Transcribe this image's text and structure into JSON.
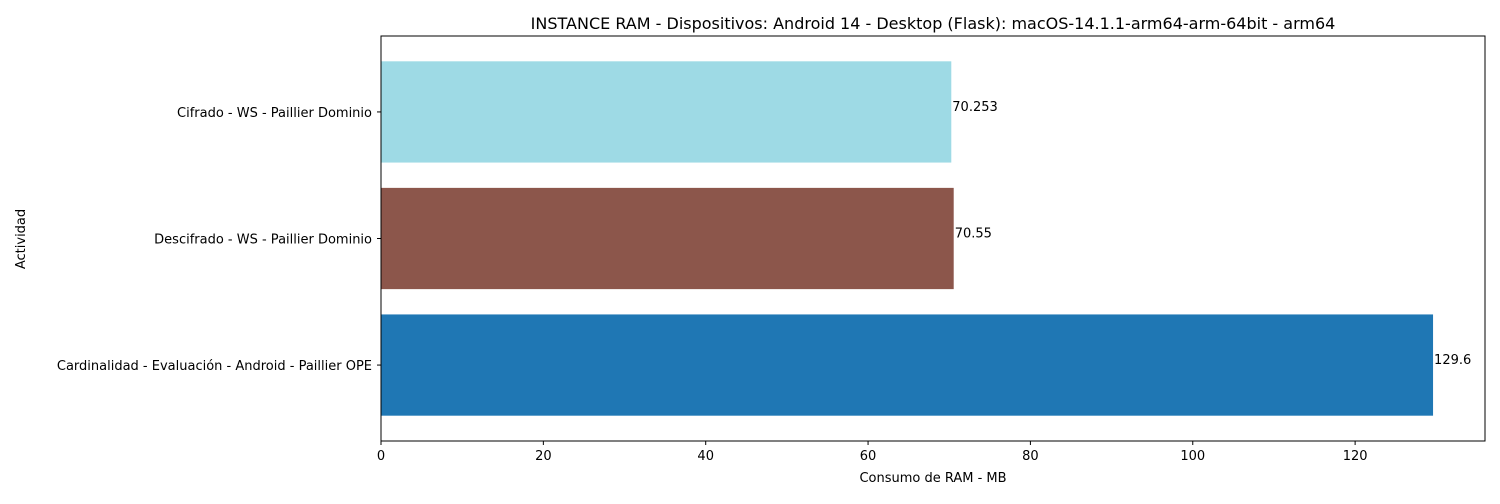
{
  "chart_data": {
    "type": "bar",
    "orientation": "horizontal",
    "title": "INSTANCE RAM - Dispositivos: Android 14 - Desktop (Flask): macOS-14.1.1-arm64-arm-64bit - arm64",
    "xlabel": "Consumo de RAM - MB",
    "ylabel": "Actividad",
    "xlim": [
      0,
      136
    ],
    "x_ticks": [
      0,
      20,
      40,
      60,
      80,
      100,
      120
    ],
    "grid": false,
    "legend": "none",
    "categories": [
      "Cardinalidad - Evaluación - Android - Paillier OPE",
      "Descifrado - WS - Paillier Dominio",
      "Cifrado - WS - Paillier Dominio"
    ],
    "values": [
      129.6,
      70.55,
      70.253
    ],
    "value_labels": [
      "129.6",
      "70.55",
      "70.253"
    ],
    "colors": [
      "#1f77b4",
      "#8c564b",
      "#9edae5"
    ]
  }
}
